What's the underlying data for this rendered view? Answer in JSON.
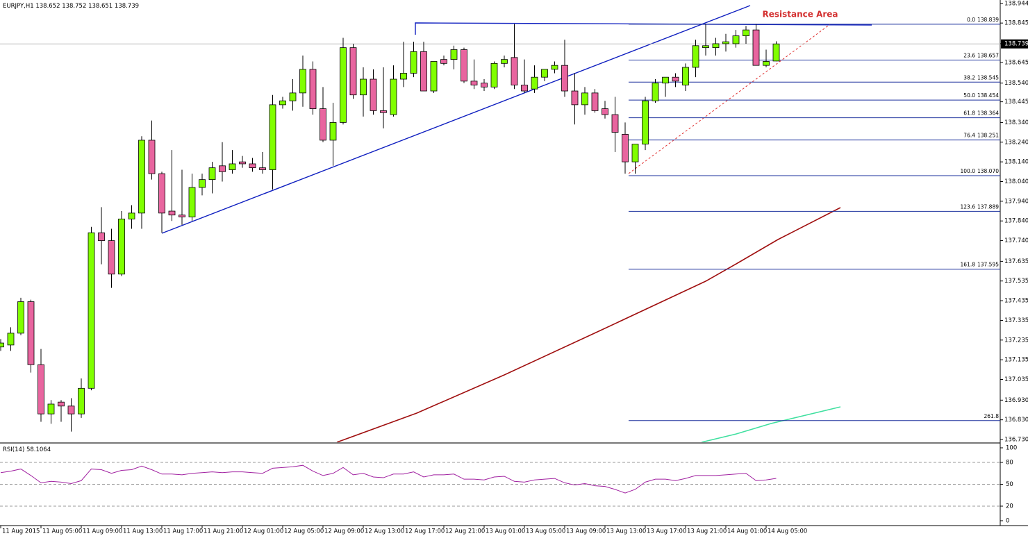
{
  "chart_data": [
    {
      "type": "candlestick",
      "symbol": "EURJPY,H1",
      "categories": [
        "11 Aug 2015",
        null,
        null,
        null,
        "11 Aug 05:00",
        null,
        null,
        null,
        "11 Aug 09:00",
        null,
        null,
        null,
        "11 Aug 13:00",
        null,
        null,
        null,
        "11 Aug 17:00",
        null,
        null,
        null,
        "11 Aug 21:00",
        null,
        null,
        null,
        "12 Aug 01:00",
        null,
        null,
        null,
        "12 Aug 05:00",
        null,
        null,
        null,
        "12 Aug 09:00",
        null,
        null,
        null,
        "12 Aug 13:00",
        null,
        null,
        null,
        "12 Aug 17:00",
        null,
        null,
        null,
        "12 Aug 21:00",
        null,
        null,
        null,
        "13 Aug 01:00",
        null,
        null,
        null,
        "13 Aug 05:00",
        null,
        null,
        null,
        "13 Aug 09:00",
        null,
        null,
        null,
        "13 Aug 13:00",
        null,
        null,
        null,
        "13 Aug 17:00",
        null,
        null,
        null,
        "13 Aug 21:00",
        null,
        null,
        null,
        "14 Aug 01:00",
        null,
        null,
        null,
        "14 Aug 05:00",
        null
      ],
      "open": [
        137.2,
        137.21,
        137.27,
        137.43,
        137.11,
        136.86,
        136.92,
        136.9,
        136.86,
        136.99,
        137.78,
        137.74,
        137.57,
        137.85,
        137.88,
        138.25,
        138.08,
        137.89,
        137.87,
        137.86,
        138.01,
        138.05,
        138.12,
        138.1,
        138.14,
        138.13,
        138.11,
        138.1,
        138.43,
        138.45,
        138.49,
        138.61,
        138.41,
        138.25,
        138.34,
        138.72,
        138.48,
        138.56,
        138.4,
        138.38,
        138.56,
        138.59,
        138.7,
        138.5,
        138.66,
        138.66,
        138.71,
        138.55,
        138.54,
        138.52,
        138.64,
        138.67,
        138.53,
        138.51,
        138.57,
        138.61,
        138.63,
        138.5,
        138.43,
        138.49,
        138.41,
        138.38,
        138.28,
        138.14,
        138.23,
        138.45,
        138.54,
        138.57,
        138.53,
        138.62,
        138.72,
        138.72,
        138.74,
        138.74,
        138.78,
        138.81,
        138.63,
        138.652
      ],
      "high": [
        137.24,
        137.3,
        137.45,
        137.44,
        137.19,
        136.93,
        136.93,
        136.94,
        137.04,
        137.81,
        137.91,
        137.8,
        137.89,
        137.92,
        138.27,
        138.35,
        138.09,
        138.2,
        138.1,
        138.08,
        138.08,
        138.14,
        138.24,
        138.2,
        138.17,
        138.16,
        138.19,
        138.48,
        138.47,
        138.56,
        138.68,
        138.65,
        138.52,
        138.44,
        138.77,
        138.74,
        138.62,
        138.61,
        138.62,
        138.63,
        138.75,
        138.75,
        138.75,
        138.65,
        138.68,
        138.73,
        138.72,
        138.66,
        138.56,
        138.65,
        138.68,
        138.84,
        138.66,
        138.63,
        138.61,
        138.65,
        138.76,
        138.59,
        138.52,
        138.51,
        138.45,
        138.47,
        138.34,
        138.21,
        138.47,
        138.56,
        138.57,
        138.59,
        138.64,
        138.76,
        138.84,
        138.77,
        138.79,
        138.81,
        138.83,
        138.84,
        138.71,
        138.752
      ],
      "low": [
        137.18,
        137.18,
        137.26,
        137.07,
        136.82,
        136.81,
        136.82,
        136.77,
        136.84,
        136.98,
        137.62,
        137.5,
        137.56,
        137.8,
        137.8,
        138.05,
        137.78,
        137.84,
        137.82,
        137.84,
        137.97,
        137.98,
        138.04,
        138.08,
        138.11,
        138.09,
        138.08,
        138.0,
        138.41,
        138.4,
        138.42,
        138.38,
        138.24,
        138.12,
        138.33,
        138.46,
        138.37,
        138.38,
        138.31,
        138.37,
        138.52,
        138.57,
        138.5,
        138.49,
        138.63,
        138.61,
        138.54,
        138.51,
        138.5,
        138.51,
        138.62,
        138.51,
        138.49,
        138.49,
        138.55,
        138.59,
        138.47,
        138.33,
        138.38,
        138.39,
        138.36,
        138.19,
        138.08,
        138.08,
        138.2,
        138.44,
        138.47,
        138.52,
        138.5,
        138.57,
        138.68,
        138.68,
        138.7,
        138.72,
        138.74,
        138.63,
        138.62,
        138.651
      ],
      "close": [
        137.22,
        137.27,
        137.43,
        137.11,
        136.86,
        136.91,
        136.9,
        136.86,
        136.99,
        137.78,
        137.74,
        137.57,
        137.85,
        137.88,
        138.25,
        138.08,
        137.88,
        137.87,
        137.86,
        138.01,
        138.05,
        138.11,
        138.09,
        138.13,
        138.13,
        138.11,
        138.1,
        138.43,
        138.45,
        138.49,
        138.61,
        138.41,
        138.25,
        138.34,
        138.72,
        138.48,
        138.56,
        138.4,
        138.39,
        138.56,
        138.59,
        138.7,
        138.5,
        138.65,
        138.64,
        138.71,
        138.55,
        138.53,
        138.52,
        138.64,
        138.66,
        138.53,
        138.5,
        138.57,
        138.61,
        138.63,
        138.5,
        138.43,
        138.49,
        138.4,
        138.38,
        138.29,
        138.14,
        138.23,
        138.45,
        138.54,
        138.57,
        138.55,
        138.62,
        138.73,
        138.73,
        138.74,
        138.75,
        138.78,
        138.81,
        138.63,
        138.65,
        138.739
      ],
      "up_color": "#80ff00",
      "down_color": "#e8659f",
      "ylim": [
        136.716,
        138.962
      ],
      "yticks": [
        138.944,
        138.845,
        {
          "value": 138.74,
          "label": "138.740"
        },
        138.645,
        {
          "value": 138.54,
          "label": "138.540"
        },
        138.445,
        {
          "value": 138.34,
          "label": "138.340"
        },
        {
          "value": 138.24,
          "label": "138.240"
        },
        {
          "value": 138.14,
          "label": "138.140"
        },
        {
          "value": 138.04,
          "label": "138.040"
        },
        {
          "value": 137.94,
          "label": "137.940"
        },
        {
          "value": 137.84,
          "label": "137.840"
        },
        {
          "value": 137.74,
          "label": "137.740"
        },
        137.635,
        137.535,
        137.435,
        137.335,
        137.235,
        137.135,
        137.035,
        {
          "value": 136.93,
          "label": "136.930"
        },
        {
          "value": 136.83,
          "label": "136.830"
        },
        {
          "value": 136.73,
          "label": "136.730"
        }
      ],
      "annotation": "Resistance Area",
      "fib_color": "#1a2f9c",
      "fib_levels": [
        {
          "ratio": {
            "value": 0,
            "label": "0.0"
          },
          "price": 138.839
        },
        {
          "ratio": 23.6,
          "price": 138.657
        },
        {
          "ratio": 38.2,
          "price": 138.545
        },
        {
          "ratio": {
            "value": 50,
            "label": "50.0"
          },
          "price": 138.454
        },
        {
          "ratio": 61.8,
          "price": 138.364
        },
        {
          "ratio": 76.4,
          "price": 138.251
        },
        {
          "ratio": {
            "value": 100,
            "label": "100.0"
          },
          "price": {
            "value": 138.07,
            "label": "138.070"
          }
        },
        {
          "ratio": 123.6,
          "price": 137.889
        },
        {
          "ratio": 161.8,
          "price": 137.595
        },
        {
          "ratio": 261.8,
          "line_at": 136.826
        }
      ]
    },
    {
      "type": "line",
      "title": "RSI(14)",
      "color": "#a020a0",
      "values": [
        66,
        68,
        71,
        62,
        52,
        54,
        53,
        51,
        55,
        71,
        70,
        65,
        69,
        70,
        75,
        70,
        64,
        64,
        63,
        65,
        66,
        67,
        66,
        67,
        67,
        66,
        65,
        72,
        73,
        74,
        76,
        68,
        62,
        65,
        73,
        63,
        65,
        60,
        59,
        64,
        64,
        67,
        60,
        63,
        63,
        64,
        57,
        57,
        56,
        60,
        61,
        54,
        53,
        56,
        57,
        58,
        52,
        49,
        51,
        48,
        47,
        43,
        38,
        43,
        53,
        57,
        57,
        55,
        58,
        62,
        62,
        62,
        63,
        64,
        65,
        55,
        56,
        58.1064
      ],
      "ylim": [
        -5.71,
        104.76
      ],
      "yticks": [
        100,
        80,
        50,
        20,
        0
      ],
      "levels": [
        80,
        50,
        20
      ]
    }
  ]
}
